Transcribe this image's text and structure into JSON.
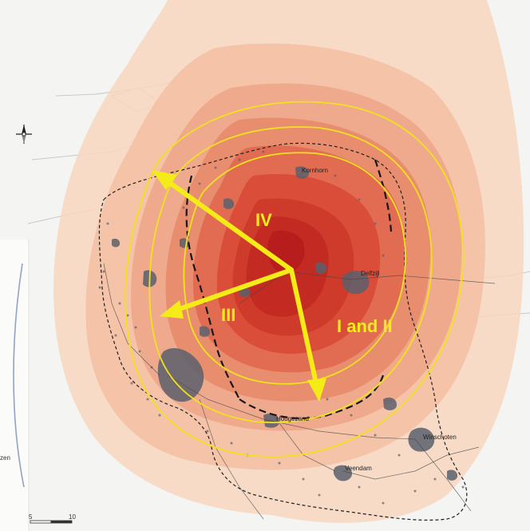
{
  "map": {
    "zone_labels": [
      "IV",
      "III",
      "I and II"
    ],
    "place_labels": [
      "Kornhorn",
      "Delfzijl",
      "Hoogezand",
      "Veendam",
      "Winschoten"
    ],
    "edge_labels": [
      "zen"
    ],
    "scale_bar": {
      "labels": [
        "5",
        "10"
      ]
    },
    "colors": {
      "contour_outer": "#f6cfb4",
      "contour_mid": "#ef9f80",
      "contour_inner": "#d63c2a",
      "contour_core": "#c42323",
      "zone_boundary": "#f2e21d",
      "arrow": "#f5ec17",
      "urban": "#595f6b",
      "boundary_dashed": "#222222"
    },
    "icons": [
      "north-arrow-icon"
    ]
  }
}
